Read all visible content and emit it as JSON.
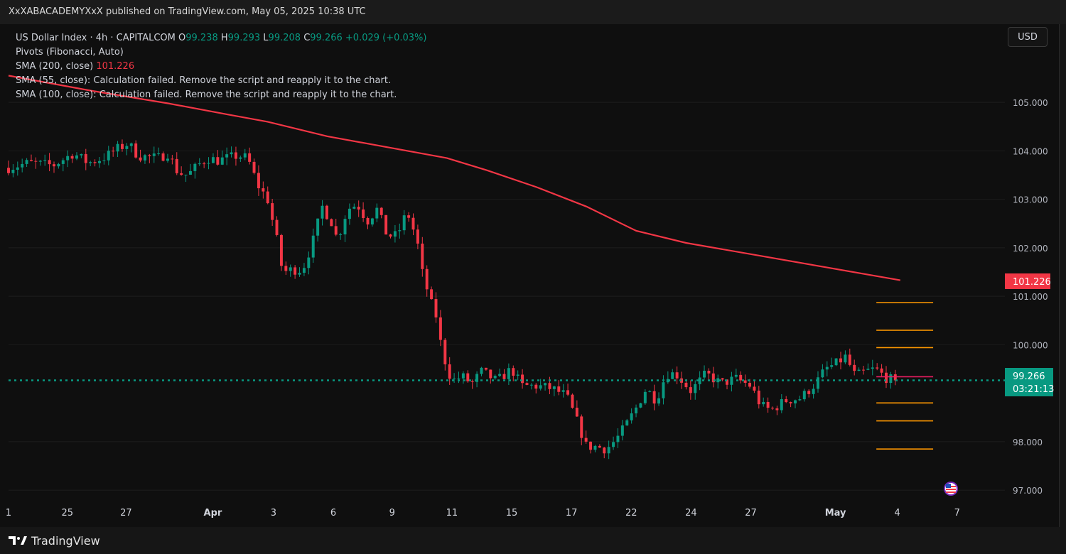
{
  "publisher": {
    "line": "XxXABACADEMYXxX published on TradingView.com, May 05, 2025 10:38 UTC"
  },
  "overlay": {
    "symbol": "US Dollar Index · 4h · CAPITALCOM",
    "o_label": "O",
    "o_value": "99.238",
    "h_label": "H",
    "h_value": "99.293",
    "l_label": "L",
    "l_value": "99.208",
    "c_label": "C",
    "c_value": "99.266",
    "change": "+0.029 (+0.03%)",
    "pivots": "Pivots (Fibonacci, Auto)",
    "sma200_label": "SMA (200, close)",
    "sma200_value": "101.226",
    "sma55": "SMA (55, close): Calculation failed. Remove the script and reapply it to the chart.",
    "sma100": "SMA (100, close): Calculation failed. Remove the script and reapply it to the chart."
  },
  "currency": {
    "label": "USD"
  },
  "brand": {
    "name": "TradingView"
  },
  "chart_data": {
    "type": "candlestick",
    "y_axis": {
      "range": [
        96.9,
        106.1
      ],
      "ticks": [
        "97.000",
        "98.000",
        "100.000",
        "101.000",
        "102.000",
        "103.000",
        "104.000",
        "105.000"
      ]
    },
    "x_axis": {
      "labels": [
        "1",
        "25",
        "27",
        "Apr",
        "3",
        "6",
        "9",
        "11",
        "15",
        "17",
        "22",
        "24",
        "27",
        "May",
        "4",
        "7"
      ],
      "label_positions": [
        0.0,
        5.9,
        11.8,
        20.5,
        26.6,
        32.6,
        38.5,
        44.5,
        50.5,
        56.5,
        62.5,
        68.5,
        74.5,
        83.0,
        89.2,
        95.2
      ]
    },
    "price_labels": {
      "sma": "101.226",
      "last": "99.266",
      "countdown": "03:21:13"
    },
    "sma200": {
      "name": "SMA (200, close)",
      "color": "#f23645",
      "points": [
        [
          0,
          105.55
        ],
        [
          8,
          105.25
        ],
        [
          16,
          104.98
        ],
        [
          22,
          104.75
        ],
        [
          26,
          104.6
        ],
        [
          32,
          104.3
        ],
        [
          40,
          104.0
        ],
        [
          44,
          103.85
        ],
        [
          48,
          103.6
        ],
        [
          53,
          103.25
        ],
        [
          58,
          102.85
        ],
        [
          63,
          102.35
        ],
        [
          68,
          102.1
        ],
        [
          75,
          101.85
        ],
        [
          82,
          101.6
        ],
        [
          89.5,
          101.33
        ]
      ]
    },
    "pivot_levels": {
      "values": [
        100.87,
        100.3,
        99.94,
        99.34,
        98.8,
        98.43,
        97.85
      ],
      "colors": [
        "#ff9800",
        "#ff9800",
        "#ff9800",
        "#e91e63",
        "#ff9800",
        "#ff9800",
        "#ff9800"
      ],
      "x_start": 87.1,
      "x_end": 92.8
    },
    "last_price": 99.266,
    "series": [
      {
        "name": "US Dollar Index",
        "up_color": "#089981",
        "down_color": "#f23645",
        "anchors": [
          [
            0,
            103.65
          ],
          [
            2,
            103.75
          ],
          [
            4.5,
            103.7
          ],
          [
            6.5,
            103.95
          ],
          [
            8,
            103.75
          ],
          [
            9.5,
            103.85
          ],
          [
            11,
            104.05
          ],
          [
            12,
            104.15
          ],
          [
            13,
            103.9
          ],
          [
            15,
            103.85
          ],
          [
            16,
            103.95
          ],
          [
            17,
            103.55
          ],
          [
            18,
            103.5
          ],
          [
            19,
            103.7
          ],
          [
            20,
            103.85
          ],
          [
            21,
            103.8
          ],
          [
            22,
            103.85
          ],
          [
            23,
            103.9
          ],
          [
            24,
            103.85
          ],
          [
            25,
            103.3
          ],
          [
            26,
            103.0
          ],
          [
            27,
            102.1
          ],
          [
            27.5,
            101.5
          ],
          [
            28.5,
            101.55
          ],
          [
            29.5,
            101.55
          ],
          [
            30.5,
            102.1
          ],
          [
            31.5,
            102.85
          ],
          [
            32.5,
            102.5
          ],
          [
            33,
            102.15
          ],
          [
            34,
            102.8
          ],
          [
            35,
            102.9
          ],
          [
            36,
            102.55
          ],
          [
            37,
            102.8
          ],
          [
            38,
            102.25
          ],
          [
            39,
            102.25
          ],
          [
            40,
            102.75
          ],
          [
            41,
            102.15
          ],
          [
            41.5,
            101.5
          ],
          [
            42.5,
            100.8
          ],
          [
            43,
            100.55
          ],
          [
            43.5,
            99.85
          ],
          [
            44.5,
            99.25
          ],
          [
            45.5,
            99.35
          ],
          [
            46.5,
            99.2
          ],
          [
            47.5,
            99.45
          ],
          [
            49,
            99.25
          ],
          [
            50.5,
            99.5
          ],
          [
            51.5,
            99.15
          ],
          [
            53,
            99.15
          ],
          [
            54.5,
            99.1
          ],
          [
            56,
            98.95
          ],
          [
            57,
            98.45
          ],
          [
            58,
            97.9
          ],
          [
            59,
            97.9
          ],
          [
            60,
            97.85
          ],
          [
            61,
            98.05
          ],
          [
            62,
            98.35
          ],
          [
            63,
            98.7
          ],
          [
            64,
            99.1
          ],
          [
            65,
            98.85
          ],
          [
            66,
            99.4
          ],
          [
            67,
            99.4
          ],
          [
            68.5,
            99.05
          ],
          [
            70,
            99.4
          ],
          [
            71.5,
            99.2
          ],
          [
            73,
            99.3
          ],
          [
            74.5,
            99.15
          ],
          [
            75.5,
            98.75
          ],
          [
            76.5,
            98.65
          ],
          [
            78,
            98.85
          ],
          [
            79.5,
            98.9
          ],
          [
            81,
            99.2
          ],
          [
            82,
            99.5
          ],
          [
            83,
            99.6
          ],
          [
            84,
            99.75
          ],
          [
            85,
            99.35
          ],
          [
            86,
            99.45
          ],
          [
            87,
            99.5
          ],
          [
            88.2,
            99.3
          ],
          [
            89,
            99.266
          ]
        ]
      }
    ]
  }
}
